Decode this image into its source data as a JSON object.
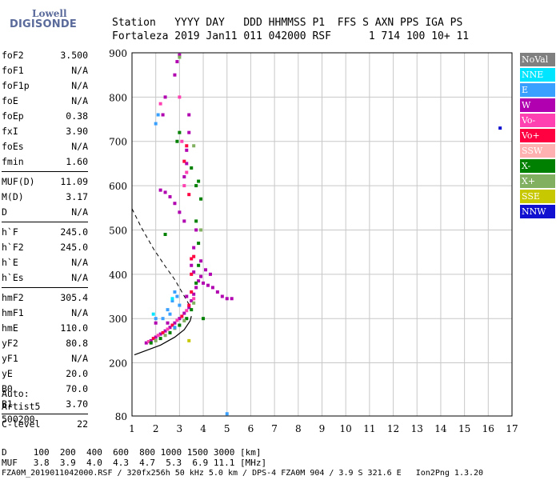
{
  "logo": {
    "line1": "Lowell",
    "line2": "DIGISONDE"
  },
  "header": {
    "line1": "Station   YYYY DAY   DDD HHMMSS P1  FFS S AXN PPS IGA PS",
    "line2": "Fortaleza 2019 Jan11 011 042000 RSF      1 714 100 10+ 11"
  },
  "params": {
    "group1": [
      {
        "label": "foF2",
        "value": "3.500"
      },
      {
        "label": "foF1",
        "value": "N/A"
      },
      {
        "label": "foF1p",
        "value": "N/A"
      },
      {
        "label": "foE",
        "value": "N/A"
      },
      {
        "label": "foEp",
        "value": "0.38"
      },
      {
        "label": "fxI",
        "value": "3.90"
      },
      {
        "label": "foEs",
        "value": "N/A"
      },
      {
        "label": "fmin",
        "value": "1.60"
      }
    ],
    "group2": [
      {
        "label": "MUF(D)",
        "value": "11.09"
      },
      {
        "label": "M(D)",
        "value": "3.17"
      },
      {
        "label": "D",
        "value": "N/A"
      }
    ],
    "group3": [
      {
        "label": "h`F",
        "value": "245.0"
      },
      {
        "label": "h`F2",
        "value": "245.0"
      },
      {
        "label": "h`E",
        "value": "N/A"
      },
      {
        "label": "h`Es",
        "value": "N/A"
      }
    ],
    "group4": [
      {
        "label": "hmF2",
        "value": "305.4"
      },
      {
        "label": "hmF1",
        "value": "N/A"
      },
      {
        "label": "hmE",
        "value": "110.0"
      },
      {
        "label": "yF2",
        "value": "80.8"
      },
      {
        "label": "yF1",
        "value": "N/A"
      },
      {
        "label": "yE",
        "value": "20.0"
      },
      {
        "label": "B0",
        "value": "70.0"
      },
      {
        "label": "B1",
        "value": "3.70"
      }
    ],
    "group5": [
      {
        "label": "C-level",
        "value": "22"
      }
    ]
  },
  "auto": {
    "line1": "Auto:",
    "line2": "Artist5",
    "line3": "500200"
  },
  "legend": [
    {
      "label": "NoVal",
      "color": "#808080"
    },
    {
      "label": "NNE",
      "color": "#00e5ff"
    },
    {
      "label": "E",
      "color": "#3aa0ff"
    },
    {
      "label": "W",
      "color": "#b000b0"
    },
    {
      "label": "Vo-",
      "color": "#ff40b0"
    },
    {
      "label": "Vo+",
      "color": "#ff0040"
    },
    {
      "label": "SSW",
      "color": "#ffb0b0"
    },
    {
      "label": "X-",
      "color": "#008000"
    },
    {
      "label": "X+",
      "color": "#80b060"
    },
    {
      "label": "SSE",
      "color": "#c8c800"
    },
    {
      "label": "NNW",
      "color": "#1010d0"
    }
  ],
  "footer": {
    "line1": "D     100  200  400  600  800 1000 1500 3000 [km]",
    "line2": "MUF   3.8  3.9  4.0  4.3  4.7  5.3  6.9 11.1 [MHz]",
    "note": "FZA0M_2019011042000.RSF / 320fx256h 50 kHz 5.0 km / DPS-4 FZA0M 904 / 3.9 S 321.6 E   Ion2Png 1.3.20"
  },
  "chart_data": {
    "type": "scatter",
    "title": "",
    "xlabel": "",
    "ylabel": "",
    "xlim": [
      1,
      17
    ],
    "ylim": [
      80,
      900
    ],
    "x_ticks": [
      1,
      2,
      3,
      4,
      5,
      6,
      7,
      8,
      9,
      10,
      11,
      12,
      13,
      14,
      15,
      16,
      17
    ],
    "y_ticks": [
      200,
      300,
      400,
      500,
      600,
      700,
      800,
      900
    ],
    "y_tick_bottom_label": "80",
    "grid": true,
    "series": [
      {
        "name": "W",
        "color": "#b000b0",
        "points": [
          [
            1.6,
            245
          ],
          [
            1.8,
            250
          ],
          [
            2.0,
            258
          ],
          [
            2.2,
            265
          ],
          [
            2.4,
            272
          ],
          [
            2.6,
            280
          ],
          [
            2.8,
            290
          ],
          [
            3.0,
            300
          ],
          [
            3.2,
            312
          ],
          [
            3.4,
            325
          ],
          [
            3.5,
            340
          ],
          [
            3.6,
            355
          ],
          [
            3.7,
            370
          ],
          [
            3.8,
            385
          ],
          [
            3.9,
            395
          ],
          [
            4.0,
            380
          ],
          [
            4.2,
            375
          ],
          [
            4.4,
            370
          ],
          [
            4.6,
            360
          ],
          [
            4.8,
            350
          ],
          [
            5.0,
            345
          ],
          [
            5.2,
            345
          ],
          [
            3.3,
            350
          ],
          [
            3.5,
            420
          ],
          [
            3.6,
            460
          ],
          [
            3.7,
            500
          ],
          [
            3.2,
            520
          ],
          [
            3.0,
            540
          ],
          [
            2.8,
            560
          ],
          [
            2.6,
            575
          ],
          [
            2.4,
            585
          ],
          [
            2.2,
            590
          ],
          [
            3.2,
            620
          ],
          [
            3.3,
            650
          ],
          [
            3.3,
            680
          ],
          [
            3.4,
            720
          ],
          [
            3.4,
            760
          ],
          [
            2.8,
            850
          ],
          [
            2.9,
            880
          ],
          [
            3.0,
            895
          ],
          [
            2.3,
            760
          ],
          [
            2.4,
            800
          ],
          [
            4.1,
            410
          ],
          [
            4.3,
            400
          ],
          [
            2.0,
            290
          ],
          [
            2.5,
            290
          ],
          [
            3.6,
            405
          ],
          [
            3.9,
            430
          ]
        ]
      },
      {
        "name": "Vo-",
        "color": "#ff40b0",
        "points": [
          [
            1.7,
            248
          ],
          [
            2.1,
            262
          ],
          [
            2.5,
            276
          ],
          [
            2.9,
            296
          ],
          [
            3.3,
            318
          ],
          [
            3.6,
            345
          ],
          [
            3.2,
            600
          ],
          [
            3.3,
            630
          ],
          [
            3.0,
            800
          ],
          [
            2.2,
            785
          ],
          [
            3.1,
            700
          ]
        ]
      },
      {
        "name": "Vo+",
        "color": "#ff0040",
        "points": [
          [
            1.9,
            255
          ],
          [
            2.3,
            268
          ],
          [
            2.7,
            285
          ],
          [
            3.1,
            305
          ],
          [
            3.4,
            330
          ],
          [
            3.5,
            360
          ],
          [
            3.5,
            400
          ],
          [
            3.6,
            440
          ],
          [
            3.4,
            580
          ],
          [
            3.2,
            655
          ],
          [
            3.3,
            690
          ],
          [
            3.5,
            435
          ]
        ]
      },
      {
        "name": "X-",
        "color": "#008000",
        "points": [
          [
            1.8,
            245
          ],
          [
            2.2,
            255
          ],
          [
            2.6,
            268
          ],
          [
            3.0,
            285
          ],
          [
            3.3,
            300
          ],
          [
            3.5,
            320
          ],
          [
            3.7,
            380
          ],
          [
            3.8,
            420
          ],
          [
            3.8,
            470
          ],
          [
            3.7,
            520
          ],
          [
            3.9,
            570
          ],
          [
            3.8,
            610
          ],
          [
            3.5,
            640
          ],
          [
            3.7,
            600
          ],
          [
            2.4,
            490
          ],
          [
            2.9,
            700
          ],
          [
            3.0,
            720
          ],
          [
            4.0,
            300
          ]
        ]
      },
      {
        "name": "X+",
        "color": "#80b060",
        "points": [
          [
            2.0,
            250
          ],
          [
            2.4,
            262
          ],
          [
            2.8,
            278
          ],
          [
            3.2,
            295
          ],
          [
            3.6,
            335
          ],
          [
            3.9,
            500
          ],
          [
            3.6,
            690
          ],
          [
            3.0,
            890
          ]
        ]
      },
      {
        "name": "E",
        "color": "#3aa0ff",
        "points": [
          [
            2.0,
            740
          ],
          [
            2.1,
            760
          ],
          [
            2.3,
            300
          ],
          [
            2.5,
            320
          ],
          [
            2.7,
            340
          ],
          [
            2.8,
            360
          ],
          [
            2.9,
            350
          ],
          [
            3.0,
            330
          ],
          [
            2.0,
            300
          ],
          [
            5.0,
            85
          ],
          [
            2.8,
            280
          ],
          [
            2.6,
            310
          ]
        ]
      },
      {
        "name": "NNE",
        "color": "#00e5ff",
        "points": [
          [
            1.9,
            310
          ],
          [
            2.7,
            345
          ]
        ]
      },
      {
        "name": "SSE",
        "color": "#c8c800",
        "points": [
          [
            3.4,
            250
          ]
        ]
      },
      {
        "name": "NNW",
        "color": "#1010d0",
        "points": [
          [
            16.5,
            730
          ]
        ]
      }
    ],
    "profile_curve": [
      [
        1.1,
        218
      ],
      [
        1.6,
        228
      ],
      [
        2.2,
        240
      ],
      [
        2.8,
        258
      ],
      [
        3.2,
        275
      ],
      [
        3.45,
        295
      ],
      [
        3.5,
        305.4
      ]
    ],
    "muf_dashed_curve": [
      [
        1.0,
        548
      ],
      [
        1.4,
        505
      ],
      [
        1.9,
        458
      ],
      [
        2.4,
        418
      ],
      [
        2.8,
        388
      ],
      [
        3.1,
        360
      ],
      [
        3.4,
        332
      ],
      [
        3.5,
        318
      ]
    ]
  }
}
